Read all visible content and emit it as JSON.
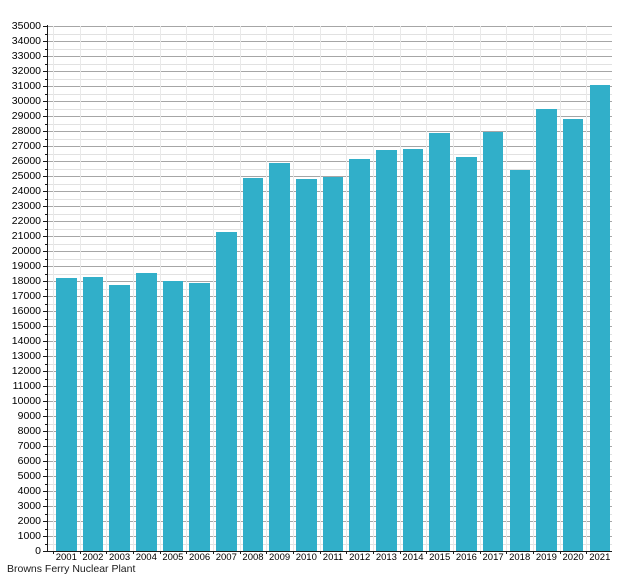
{
  "chart_data": {
    "type": "bar",
    "title": "",
    "caption": "Browns Ferry Nuclear Plant",
    "categories": [
      "2001",
      "2002",
      "2003",
      "2004",
      "2005",
      "2006",
      "2007",
      "2008",
      "2009",
      "2010",
      "2011",
      "2012",
      "2013",
      "2014",
      "2015",
      "2016",
      "2017",
      "2018",
      "2019",
      "2020",
      "2021"
    ],
    "values": [
      18200,
      18250,
      17750,
      18550,
      18000,
      17900,
      21300,
      24900,
      25900,
      24800,
      24950,
      26150,
      26750,
      26800,
      27850,
      26250,
      27950,
      25400,
      29500,
      28800,
      31100
    ],
    "xlabel": "",
    "ylabel": "",
    "y_axis": {
      "min": 0,
      "max": 35000,
      "major_step": 1000,
      "minor_step": 500
    },
    "grid": true,
    "legend": false,
    "colors": {
      "bar": "#31afc9",
      "major_grid": "#a6a6a6",
      "minor_grid": "#e1e1e1",
      "category_grid": "#e9e9e9",
      "axis": "#1a1a1a",
      "text": "#000000",
      "background": "#ffffff"
    }
  }
}
